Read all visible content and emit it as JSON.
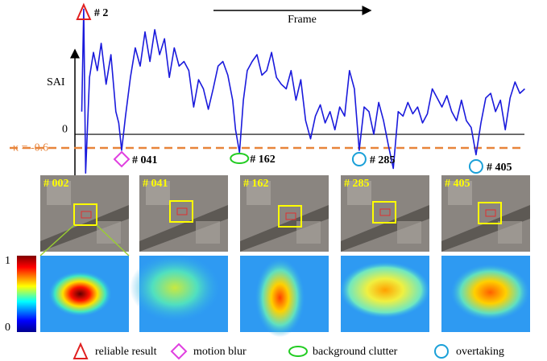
{
  "chart_data": {
    "type": "line",
    "y_label": "SAI",
    "x_label": "Frame",
    "x": [
      0,
      2,
      4,
      8,
      12,
      16,
      20,
      25,
      30,
      35,
      38,
      41,
      45,
      50,
      55,
      60,
      65,
      70,
      75,
      80,
      85,
      90,
      95,
      100,
      105,
      110,
      115,
      120,
      125,
      130,
      135,
      140,
      145,
      150,
      155,
      158,
      162,
      166,
      170,
      175,
      180,
      185,
      190,
      195,
      200,
      205,
      210,
      215,
      220,
      225,
      230,
      235,
      240,
      245,
      250,
      255,
      260,
      265,
      270,
      275,
      280,
      285,
      290,
      295,
      300,
      305,
      310,
      315,
      320,
      325,
      330,
      335,
      340,
      345,
      350,
      355,
      360,
      365,
      370,
      375,
      380,
      385,
      390,
      395,
      400,
      405,
      410,
      415,
      420,
      425,
      430,
      435,
      440,
      445,
      450,
      455
    ],
    "series": [
      {
        "name": "SAI",
        "color": "#1a1adc",
        "values": [
          1.0,
          5.5,
          -1.7,
          2.5,
          3.6,
          2.8,
          4.0,
          2.2,
          3.5,
          1.0,
          0.5,
          -0.7,
          0.8,
          2.5,
          3.8,
          3.0,
          4.5,
          3.2,
          4.6,
          3.5,
          4.2,
          2.5,
          3.8,
          3.0,
          3.2,
          2.8,
          1.2,
          2.4,
          2.0,
          1.1,
          2.0,
          3.0,
          3.2,
          2.6,
          1.5,
          0.2,
          -0.8,
          1.5,
          2.8,
          3.2,
          3.5,
          2.6,
          2.8,
          3.6,
          2.5,
          2.2,
          2.0,
          2.8,
          1.5,
          2.4,
          0.6,
          -0.2,
          0.8,
          1.3,
          0.5,
          1.0,
          0.2,
          1.2,
          0.8,
          2.8,
          2.0,
          -0.7,
          1.2,
          1.0,
          0.0,
          1.4,
          0.6,
          -0.5,
          -1.5,
          1.0,
          0.8,
          1.4,
          0.9,
          1.2,
          0.5,
          0.9,
          2.0,
          1.6,
          1.2,
          1.7,
          1.0,
          0.6,
          1.5,
          0.6,
          0.3,
          -0.9,
          0.5,
          1.6,
          1.8,
          1.0,
          1.5,
          0.2,
          1.6,
          2.3,
          1.8,
          2.0
        ]
      }
    ],
    "xlim": [
      -7,
      458
    ],
    "ylim": [
      -1.8,
      5.55
    ],
    "yticks": [
      0
    ],
    "threshold": {
      "value": -0.6,
      "label": "κ = -0.6",
      "color": "#e8843a"
    },
    "markers": [
      {
        "frame": 2,
        "label": "# 2",
        "shape": "triangle"
      },
      {
        "frame": 41,
        "label": "# 041",
        "shape": "diamond"
      },
      {
        "frame": 162,
        "label": "# 162",
        "shape": "ellipse"
      },
      {
        "frame": 285,
        "label": "# 285",
        "shape": "circle"
      },
      {
        "frame": 405,
        "label": "# 405",
        "shape": "circle"
      }
    ],
    "frames": [
      "# 002",
      "# 041",
      "# 162",
      "# 285",
      "# 405"
    ],
    "colorbar_ticks": [
      1,
      0
    ],
    "legend": [
      {
        "shape": "triangle",
        "label": "reliable result",
        "color": "#e02020"
      },
      {
        "shape": "diamond",
        "label": "motion blur",
        "color": "#e040e0"
      },
      {
        "shape": "ellipse",
        "label": "background clutter",
        "color": "#22cc22"
      },
      {
        "shape": "circle",
        "label": "overtaking",
        "color": "#1aa0d8"
      }
    ]
  }
}
